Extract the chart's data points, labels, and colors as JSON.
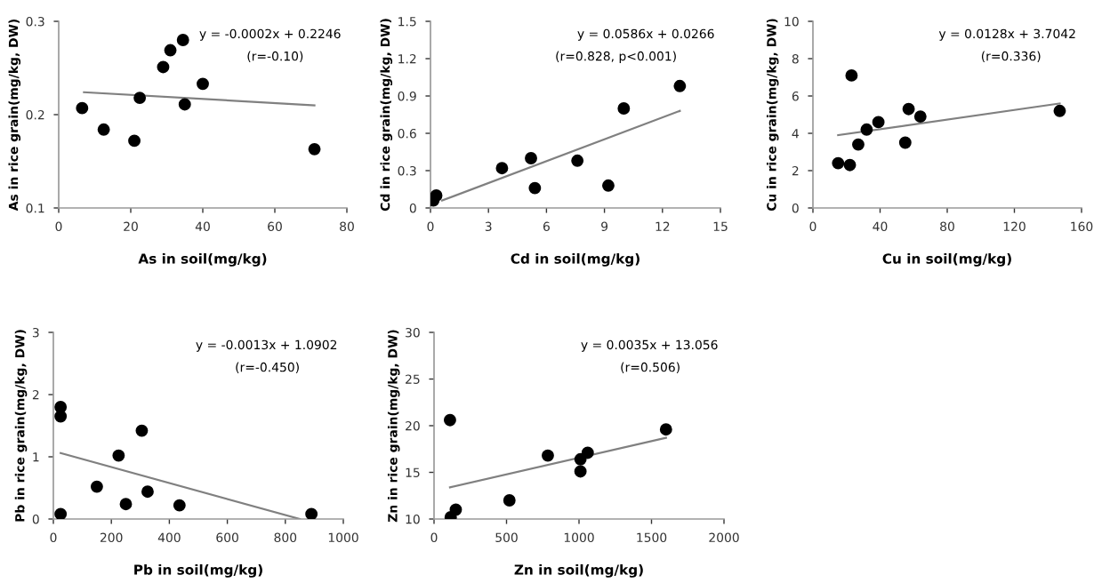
{
  "chart_data": [
    {
      "type": "scatter",
      "xlabel": "As in soil(mg/kg)",
      "ylabel": "As in rice grain(mg/kg, DW)",
      "xlim": [
        0,
        80
      ],
      "xticks": [
        0,
        20,
        40,
        60,
        80
      ],
      "ylim": [
        0.1,
        0.3
      ],
      "yticks": [
        0.1,
        0.2,
        0.3
      ],
      "marker": "circle",
      "annotations": [
        "y = -0.0002x + 0.2246",
        "(r=-0.10)"
      ],
      "series": [
        {
          "color": "#000000",
          "x": [
            6.5,
            12.5,
            21,
            22.5,
            29,
            31,
            34.5,
            35,
            40,
            71
          ],
          "values": [
            0.207,
            0.184,
            0.172,
            0.218,
            0.251,
            0.269,
            0.28,
            0.211,
            0.233,
            0.163
          ]
        },
        {
          "type": "line",
          "marker": "none",
          "color": "#808080",
          "x": [
            7,
            71
          ],
          "values": [
            0.224,
            0.21
          ]
        }
      ]
    },
    {
      "type": "scatter",
      "xlabel": "Cd in soil(mg/kg)",
      "ylabel": "Cd in rice grain(mg/kg, DW)",
      "xlim": [
        0,
        15
      ],
      "xticks": [
        0,
        3,
        6,
        9,
        12,
        15
      ],
      "ylim": [
        0,
        1.5
      ],
      "yticks": [
        0,
        0.3,
        0.6,
        0.9,
        1.2,
        1.5
      ],
      "marker": "circle",
      "annotations": [
        "y = 0.0586x + 0.0266",
        "(r=0.828, p<0.001)"
      ],
      "series": [
        {
          "color": "#000000",
          "x": [
            0.15,
            0.3,
            3.7,
            5.2,
            5.4,
            7.6,
            9.2,
            10,
            12.9
          ],
          "values": [
            0.06,
            0.1,
            0.32,
            0.4,
            0.16,
            0.38,
            0.18,
            0.8,
            0.98
          ]
        },
        {
          "type": "line",
          "marker": "none",
          "color": "#808080",
          "x": [
            0.6,
            12.9
          ],
          "values": [
            0.06,
            0.78
          ]
        }
      ]
    },
    {
      "type": "scatter",
      "xlabel": "Cu in soil(mg/kg)",
      "ylabel": "Cu in rice grain(mg/kg, DW)",
      "xlim": [
        0,
        160
      ],
      "xticks": [
        0,
        40,
        80,
        120,
        160
      ],
      "ylim": [
        0,
        10
      ],
      "yticks": [
        0,
        2,
        4,
        6,
        8,
        10
      ],
      "marker": "circle",
      "annotations": [
        "y = 0.0128x + 3.7042",
        "(r=0.336)"
      ],
      "series": [
        {
          "color": "#000000",
          "x": [
            15,
            22,
            23,
            27,
            32,
            39,
            55,
            57,
            64,
            147
          ],
          "values": [
            2.4,
            2.3,
            7.1,
            3.4,
            4.2,
            4.6,
            3.5,
            5.3,
            4.9,
            5.2
          ]
        },
        {
          "type": "line",
          "marker": "none",
          "color": "#808080",
          "x": [
            15,
            147
          ],
          "values": [
            3.9,
            5.6
          ]
        }
      ]
    },
    {
      "type": "scatter",
      "xlabel": "Pb in soil(mg/kg)",
      "ylabel": "Pb in rice grain(mg/kg, DW)",
      "xlim": [
        0,
        1000
      ],
      "xticks": [
        0,
        200,
        400,
        600,
        800,
        1000
      ],
      "ylim": [
        0,
        3
      ],
      "yticks": [
        0,
        1,
        2,
        3
      ],
      "marker": "circle",
      "annotations": [
        "y = -0.0013x + 1.0902",
        "(r=-0.450)"
      ],
      "series": [
        {
          "color": "#000000",
          "x": [
            25,
            25,
            25,
            150,
            225,
            250,
            305,
            325,
            435,
            890
          ],
          "values": [
            1.8,
            1.65,
            0.08,
            0.52,
            1.02,
            0.24,
            1.42,
            0.44,
            0.22,
            0.08
          ]
        },
        {
          "type": "line",
          "marker": "none",
          "color": "#808080",
          "x": [
            25,
            850
          ],
          "values": [
            1.06,
            0
          ]
        }
      ]
    },
    {
      "type": "scatter",
      "xlabel": "Zn in soil(mg/kg)",
      "ylabel": "Zn in rice grain(mg/kg, DW)",
      "xlim": [
        0,
        2000
      ],
      "xticks": [
        0,
        500,
        1000,
        1500,
        2000
      ],
      "ylim": [
        10,
        30
      ],
      "yticks": [
        10,
        15,
        20,
        25,
        30
      ],
      "marker": "circle",
      "annotations": [
        "y = 0.0035x + 13.056",
        "(r=0.506)"
      ],
      "series": [
        {
          "color": "#000000",
          "x": [
            110,
            115,
            150,
            520,
            785,
            1010,
            1010,
            1060,
            1600
          ],
          "values": [
            20.6,
            10.2,
            11,
            12,
            16.8,
            16.4,
            15.1,
            17.1,
            19.6
          ]
        },
        {
          "type": "line",
          "marker": "none",
          "color": "#808080",
          "x": [
            110,
            1600
          ],
          "values": [
            13.4,
            18.7
          ]
        }
      ]
    }
  ]
}
